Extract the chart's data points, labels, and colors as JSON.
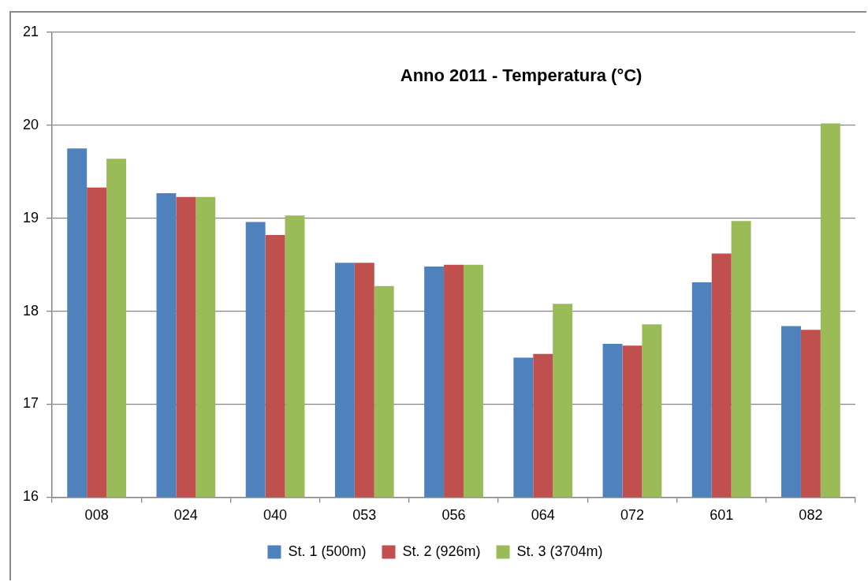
{
  "chart_data": {
    "type": "bar",
    "title": "Anno 2011 - Temperatura (°C)",
    "categories": [
      "008",
      "024",
      "040",
      "053",
      "056",
      "064",
      "072",
      "601",
      "082"
    ],
    "series": [
      {
        "name": "St. 1 (500m)",
        "color": "#4f81bd",
        "values": [
          19.75,
          19.27,
          18.96,
          18.52,
          18.48,
          17.5,
          17.65,
          18.31,
          17.84
        ]
      },
      {
        "name": "St. 2 (926m)",
        "color": "#c0504d",
        "values": [
          19.33,
          19.23,
          18.82,
          18.52,
          18.5,
          17.54,
          17.63,
          18.62,
          17.8
        ]
      },
      {
        "name": "St. 3 (3704m)",
        "color": "#9bbb59",
        "values": [
          19.64,
          19.23,
          19.03,
          18.27,
          18.5,
          18.08,
          17.86,
          18.97,
          20.02
        ]
      }
    ],
    "ylim": [
      16,
      21
    ],
    "yticks": [
      16,
      17,
      18,
      19,
      20,
      21
    ],
    "grid": "y",
    "legend": "bottom"
  }
}
